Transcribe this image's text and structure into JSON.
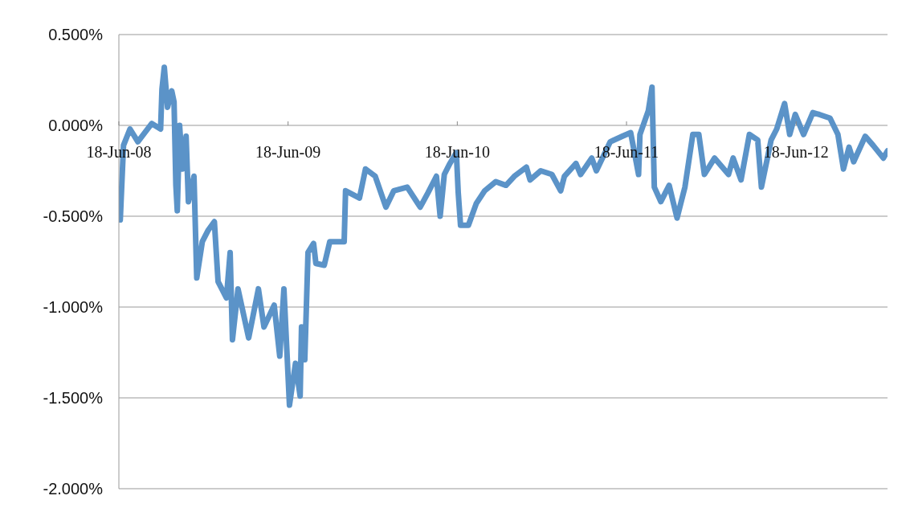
{
  "chart_data": {
    "type": "line",
    "x": [
      "2008-06-21",
      "2008-06-28",
      "2008-07-12",
      "2008-07-29",
      "2008-08-28",
      "2008-09-16",
      "2008-09-19",
      "2008-09-24",
      "2008-10-01",
      "2008-10-10",
      "2008-10-15",
      "2008-10-19",
      "2008-10-22",
      "2008-10-27",
      "2008-11-02",
      "2008-11-10",
      "2008-11-15",
      "2008-11-27",
      "2008-12-03",
      "2008-12-15",
      "2008-12-27",
      "2009-01-10",
      "2009-01-18",
      "2009-02-05",
      "2009-02-13",
      "2009-02-18",
      "2009-03-02",
      "2009-03-25",
      "2009-04-15",
      "2009-04-27",
      "2009-05-19",
      "2009-05-31",
      "2009-06-09",
      "2009-06-21",
      "2009-07-04",
      "2009-07-14",
      "2009-07-17",
      "2009-07-24",
      "2009-07-31",
      "2009-08-12",
      "2009-08-17",
      "2009-09-04",
      "2009-09-16",
      "2009-10-17",
      "2009-10-20",
      "2009-11-19",
      "2009-12-02",
      "2009-12-23",
      "2010-01-15",
      "2010-02-01",
      "2010-03-02",
      "2010-03-30",
      "2010-04-16",
      "2010-05-04",
      "2010-05-12",
      "2010-05-21",
      "2010-06-02",
      "2010-06-16",
      "2010-06-20",
      "2010-06-25",
      "2010-07-12",
      "2010-07-29",
      "2010-08-16",
      "2010-09-09",
      "2010-10-01",
      "2010-10-19",
      "2010-11-14",
      "2010-11-22",
      "2010-12-15",
      "2011-01-08",
      "2011-01-27",
      "2011-02-04",
      "2011-03-01",
      "2011-03-11",
      "2011-04-04",
      "2011-04-14",
      "2011-05-14",
      "2011-06-09",
      "2011-06-27",
      "2011-07-14",
      "2011-07-17",
      "2011-08-04",
      "2011-08-12",
      "2011-08-17",
      "2011-08-31",
      "2011-09-18",
      "2011-10-05",
      "2011-10-22",
      "2011-11-08",
      "2011-11-21",
      "2011-12-03",
      "2011-12-25",
      "2012-01-24",
      "2012-02-03",
      "2012-02-20",
      "2012-03-09",
      "2012-03-27",
      "2012-04-04",
      "2012-04-25",
      "2012-05-07",
      "2012-05-24",
      "2012-06-04",
      "2012-06-16",
      "2012-07-04",
      "2012-07-24",
      "2012-08-07",
      "2012-08-30",
      "2012-09-16",
      "2012-09-28",
      "2012-10-10",
      "2012-10-20",
      "2012-11-14",
      "2012-12-01",
      "2012-12-23",
      "2013-01-01"
    ],
    "series": [
      {
        "color": "#5b93c8",
        "values": [
          -0.52,
          -0.11,
          -0.02,
          -0.09,
          0.01,
          -0.02,
          0.2,
          0.32,
          0.1,
          0.19,
          0.13,
          -0.33,
          -0.47,
          0.0,
          -0.24,
          -0.06,
          -0.42,
          -0.28,
          -0.84,
          -0.64,
          -0.58,
          -0.53,
          -0.86,
          -0.95,
          -0.7,
          -1.18,
          -0.9,
          -1.17,
          -0.9,
          -1.11,
          -0.99,
          -1.27,
          -0.9,
          -1.54,
          -1.31,
          -1.49,
          -1.11,
          -1.29,
          -0.7,
          -0.65,
          -0.76,
          -0.77,
          -0.64,
          -0.64,
          -0.36,
          -0.4,
          -0.24,
          -0.28,
          -0.45,
          -0.36,
          -0.34,
          -0.45,
          -0.37,
          -0.28,
          -0.5,
          -0.27,
          -0.21,
          -0.15,
          -0.37,
          -0.55,
          -0.55,
          -0.43,
          -0.36,
          -0.31,
          -0.33,
          -0.28,
          -0.23,
          -0.3,
          -0.25,
          -0.27,
          -0.36,
          -0.28,
          -0.21,
          -0.27,
          -0.18,
          -0.25,
          -0.09,
          -0.06,
          -0.04,
          -0.27,
          -0.05,
          0.08,
          0.21,
          -0.34,
          -0.42,
          -0.33,
          -0.51,
          -0.34,
          -0.05,
          -0.05,
          -0.27,
          -0.18,
          -0.27,
          -0.18,
          -0.3,
          -0.05,
          -0.08,
          -0.34,
          -0.08,
          -0.02,
          0.12,
          -0.05,
          0.06,
          -0.05,
          0.07,
          0.06,
          0.04,
          -0.05,
          -0.24,
          -0.12,
          -0.2,
          -0.06,
          -0.11,
          -0.18,
          -0.14
        ]
      }
    ],
    "xlim": [
      "2008-06-18",
      "2013-01-01"
    ],
    "xticks": [
      {
        "value": "2008-06-18",
        "label": "18-Jun-08"
      },
      {
        "value": "2009-06-18",
        "label": "18-Jun-09"
      },
      {
        "value": "2010-06-18",
        "label": "18-Jun-10"
      },
      {
        "value": "2011-06-18",
        "label": "18-Jun-11"
      },
      {
        "value": "2012-06-18",
        "label": "18-Jun-12"
      }
    ],
    "ylim": [
      -2,
      0.5
    ],
    "yticks": [
      {
        "value": -2,
        "label": "-2.000%"
      },
      {
        "value": -1.5,
        "label": "-1.500%"
      },
      {
        "value": -1,
        "label": "-1.000%"
      },
      {
        "value": -0.5,
        "label": "-0.500%"
      },
      {
        "value": 0,
        "label": "0.000%"
      },
      {
        "value": 0.5,
        "label": "0.500%"
      }
    ],
    "grid": "y",
    "marker": "none",
    "line_style": "solid",
    "legend": false
  }
}
